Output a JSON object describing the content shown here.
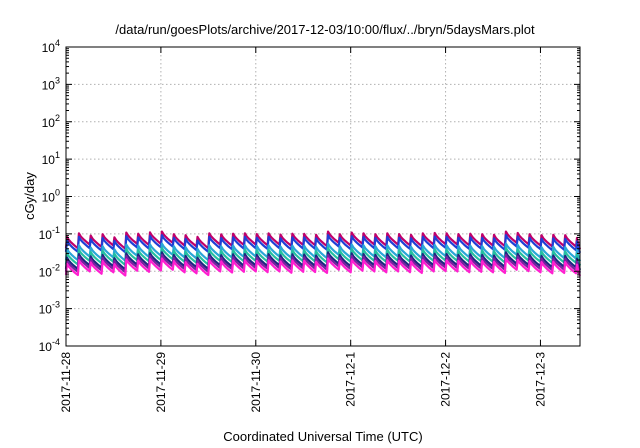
{
  "chart_data": {
    "type": "line",
    "title": "/data/run/goesPlots/archive/2017-12-03/10:00/flux/../bryn/5daysMars.plot",
    "xlabel": "Coordinated Universal Time (UTC)",
    "ylabel": "cGy/day",
    "y_scale": "log",
    "ylim": [
      0.0001,
      10000
    ],
    "y_ticks": [
      {
        "base": "10",
        "exp": "-4",
        "value": 0.0001
      },
      {
        "base": "10",
        "exp": "-3",
        "value": 0.001
      },
      {
        "base": "10",
        "exp": "-2",
        "value": 0.01
      },
      {
        "base": "10",
        "exp": "-1",
        "value": 0.1
      },
      {
        "base": "10",
        "exp": "0",
        "value": 1
      },
      {
        "base": "10",
        "exp": "1",
        "value": 10
      },
      {
        "base": "10",
        "exp": "2",
        "value": 100
      },
      {
        "base": "10",
        "exp": "3",
        "value": 1000
      },
      {
        "base": "10",
        "exp": "4",
        "value": 10000
      }
    ],
    "xlim": [
      "2017-11-28T00:00",
      "2017-12-03T10:00"
    ],
    "x_ticks": [
      "2017-11-28",
      "2017-11-29",
      "2017-11-30",
      "2017-12-1",
      "2017-12-2",
      "2017-12-3"
    ],
    "x_tick_dates": [
      "2017-11-28",
      "2017-11-29",
      "2017-11-30",
      "2017-12-01",
      "2017-12-02",
      "2017-12-03"
    ],
    "grid": true,
    "legend": "none",
    "sawtooth_period_hours": 3,
    "x_times": [
      "2017-11-28T00:00",
      "2017-11-28T03:00",
      "2017-11-28T06:00",
      "2017-11-28T09:00",
      "2017-11-28T12:00",
      "2017-11-28T15:00",
      "2017-11-28T18:00",
      "2017-11-28T21:00",
      "2017-11-29T00:00",
      "2017-11-29T03:00",
      "2017-11-29T06:00",
      "2017-11-29T09:00",
      "2017-11-29T12:00",
      "2017-11-29T15:00",
      "2017-11-29T18:00",
      "2017-11-29T21:00",
      "2017-11-30T00:00",
      "2017-11-30T03:00",
      "2017-11-30T06:00",
      "2017-11-30T09:00",
      "2017-11-30T12:00",
      "2017-11-30T15:00",
      "2017-11-30T18:00",
      "2017-11-30T21:00",
      "2017-12-01T00:00",
      "2017-12-01T03:00",
      "2017-12-01T06:00",
      "2017-12-01T09:00",
      "2017-12-01T12:00",
      "2017-12-01T15:00",
      "2017-12-01T18:00",
      "2017-12-01T21:00",
      "2017-12-02T00:00",
      "2017-12-02T03:00",
      "2017-12-02T06:00",
      "2017-12-02T09:00",
      "2017-12-02T12:00",
      "2017-12-02T15:00",
      "2017-12-02T18:00",
      "2017-12-02T21:00",
      "2017-12-03T00:00",
      "2017-12-03T03:00",
      "2017-12-03T06:00",
      "2017-12-03T09:00"
    ],
    "peak_levels": [
      0.072,
      0.09,
      0.078,
      0.085,
      0.07,
      0.094,
      0.088,
      0.095,
      0.1,
      0.085,
      0.08,
      0.072,
      0.09,
      0.084,
      0.088,
      0.09,
      0.086,
      0.09,
      0.083,
      0.088,
      0.087,
      0.082,
      0.1,
      0.085,
      0.094,
      0.09,
      0.085,
      0.09,
      0.086,
      0.082,
      0.09,
      0.092,
      0.09,
      0.086,
      0.088,
      0.085,
      0.082,
      0.1,
      0.092,
      0.085,
      0.08,
      0.082,
      0.08,
      0.068
    ],
    "trough_factor": 0.5,
    "series": [
      {
        "name": "",
        "color": "#c0006a",
        "scale": 1.15
      },
      {
        "name": "",
        "color": "#1f3fd6",
        "scale": 0.92
      },
      {
        "name": "",
        "color": "#2aa6d8",
        "scale": 0.55
      },
      {
        "name": "",
        "color": "#24c0a0",
        "scale": 0.42
      },
      {
        "name": "",
        "color": "#1b2a80",
        "scale": 0.32
      },
      {
        "name": "",
        "color": "#7a1fa0",
        "scale": 0.27
      },
      {
        "name": "",
        "color": "#ff1fd0",
        "scale": 0.22
      }
    ]
  }
}
